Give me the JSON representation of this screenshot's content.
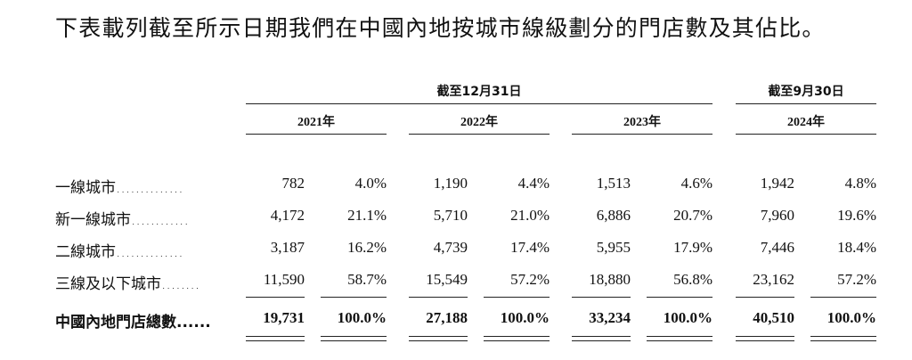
{
  "intro": "下表載列截至所示日期我們在中國內地按城市線級劃分的門店數及其佔比。",
  "headers": {
    "period_dec31": "截至12月31日",
    "period_sep30": "截至9月30日",
    "years": [
      "2021年",
      "2022年",
      "2023年",
      "2024年"
    ]
  },
  "rows": [
    {
      "label": "一線城市..............",
      "cells": [
        "782",
        "4.0%",
        "1,190",
        "4.4%",
        "1,513",
        "4.6%",
        "1,942",
        "4.8%"
      ]
    },
    {
      "label": "新一線城市............",
      "cells": [
        "4,172",
        "21.1%",
        "5,710",
        "21.0%",
        "6,886",
        "20.7%",
        "7,960",
        "19.6%"
      ]
    },
    {
      "label": "二線城市..............",
      "cells": [
        "3,187",
        "16.2%",
        "4,739",
        "17.4%",
        "5,955",
        "17.9%",
        "7,446",
        "18.4%"
      ]
    },
    {
      "label": "三線及以下城市........",
      "cells": [
        "11,590",
        "58.7%",
        "15,549",
        "57.2%",
        "18,880",
        "56.8%",
        "23,162",
        "57.2%"
      ]
    }
  ],
  "total": {
    "label": "中國內地門店總數......",
    "cells": [
      "19,731",
      "100.0%",
      "27,188",
      "100.0%",
      "33,234",
      "100.0%",
      "40,510",
      "100.0%"
    ]
  }
}
